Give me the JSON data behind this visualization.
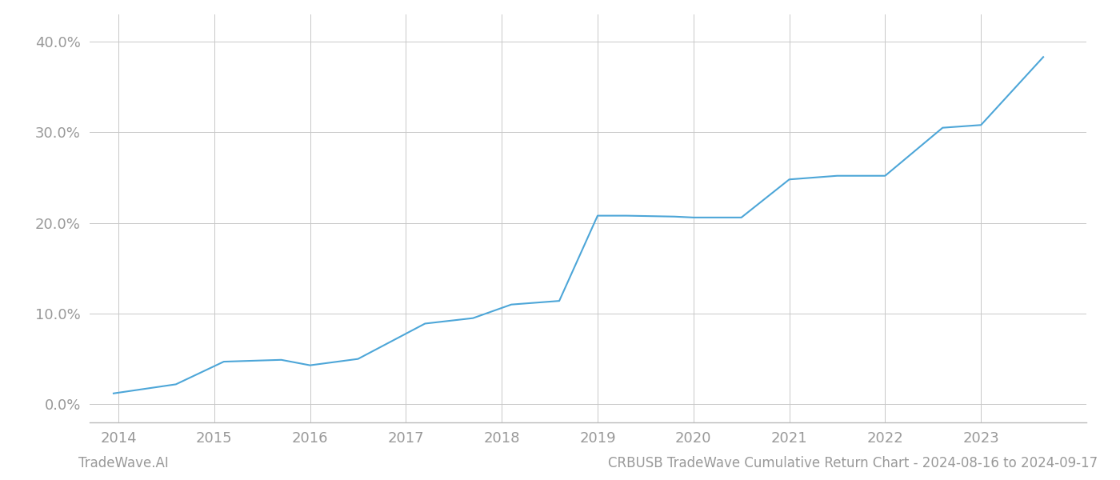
{
  "x_values": [
    2013.95,
    2014.6,
    2015.1,
    2015.7,
    2016.0,
    2016.5,
    2017.2,
    2017.7,
    2018.1,
    2018.6,
    2019.0,
    2019.3,
    2019.8,
    2020.0,
    2020.5,
    2021.0,
    2021.5,
    2022.0,
    2022.6,
    2023.0,
    2023.65
  ],
  "y_values": [
    0.012,
    0.022,
    0.047,
    0.049,
    0.043,
    0.05,
    0.089,
    0.095,
    0.11,
    0.114,
    0.208,
    0.208,
    0.207,
    0.206,
    0.206,
    0.248,
    0.252,
    0.252,
    0.305,
    0.308,
    0.383
  ],
  "line_color": "#4da6d8",
  "line_width": 1.5,
  "background_color": "#ffffff",
  "grid_color": "#c8c8c8",
  "footer_left": "TradeWave.AI",
  "footer_right": "CRBUSB TradeWave Cumulative Return Chart - 2024-08-16 to 2024-09-17",
  "xlim": [
    2013.7,
    2024.1
  ],
  "ylim": [
    -0.02,
    0.43
  ],
  "xticks": [
    2014,
    2015,
    2016,
    2017,
    2018,
    2019,
    2020,
    2021,
    2022,
    2023
  ],
  "yticks": [
    0.0,
    0.1,
    0.2,
    0.3,
    0.4
  ],
  "ytick_labels": [
    "0.0%",
    "10.0%",
    "20.0%",
    "30.0%",
    "40.0%"
  ],
  "tick_color": "#999999",
  "tick_fontsize": 13,
  "footer_fontsize": 12,
  "spine_color": "#bbbbbb"
}
